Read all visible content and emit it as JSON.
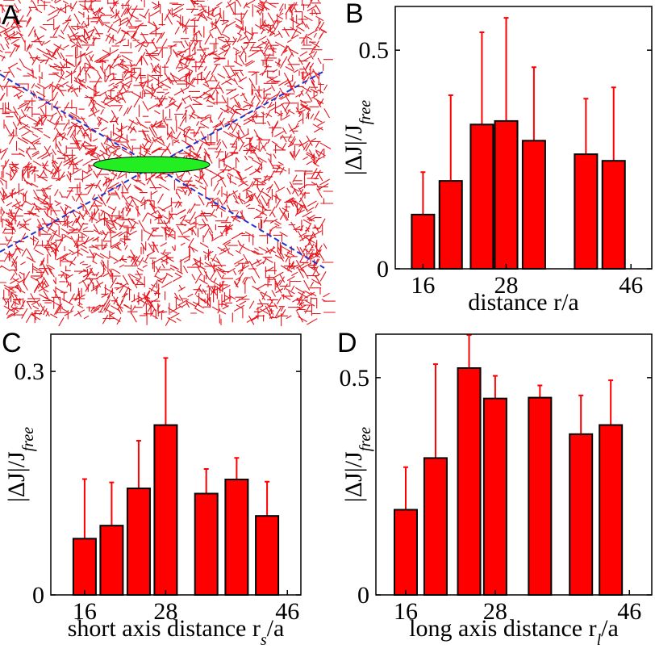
{
  "chart_data": [
    {
      "type": "network",
      "label": "A"
    },
    {
      "type": "bar",
      "label": "B",
      "x": [
        16,
        20,
        24.5,
        28,
        32,
        39.5,
        43.5
      ],
      "values": [
        0.124,
        0.201,
        0.33,
        0.338,
        0.293,
        0.262,
        0.247
      ],
      "errors": [
        0.097,
        0.196,
        0.211,
        0.236,
        0.168,
        0.127,
        0.168
      ],
      "color": "#ff0000",
      "xlim": [
        12,
        49
      ],
      "xticks": [
        16,
        28,
        46
      ],
      "ylim": [
        0,
        0.6
      ],
      "yticks": [
        0,
        0.5
      ],
      "xlabel": [
        "distance r/a"
      ],
      "ylabel": [
        "|ΔJ|/J",
        "free"
      ]
    },
    {
      "type": "bar",
      "label": "C",
      "x": [
        16,
        20,
        24,
        28,
        34,
        38.5,
        43
      ],
      "values": [
        0.0755,
        0.093,
        0.143,
        0.228,
        0.136,
        0.155,
        0.106
      ],
      "errors": [
        0.08,
        0.058,
        0.064,
        0.09,
        0.033,
        0.029,
        0.046
      ],
      "color": "#ff0000",
      "xlim": [
        11,
        48
      ],
      "xticks": [
        16,
        28,
        46
      ],
      "ylim": [
        0,
        0.35
      ],
      "yticks": [
        0,
        0.3
      ],
      "xlabel": [
        "short axis distance r",
        "s",
        "/a"
      ],
      "ylabel": [
        "|ΔJ|/J",
        "free"
      ]
    },
    {
      "type": "bar",
      "label": "D",
      "x": [
        16,
        20,
        24.5,
        28,
        34,
        39.5,
        43.5
      ],
      "values": [
        0.196,
        0.315,
        0.522,
        0.452,
        0.454,
        0.37,
        0.391
      ],
      "errors": [
        0.098,
        0.216,
        0.076,
        0.052,
        0.028,
        0.089,
        0.103
      ],
      "color": "#ff0000",
      "xlim": [
        12,
        49
      ],
      "xticks": [
        16,
        28,
        46
      ],
      "ylim": [
        0,
        0.6
      ],
      "yticks": [
        0,
        0.5
      ],
      "xlabel": [
        "long axis distance r",
        "l",
        "/a"
      ],
      "ylabel": [
        "|ΔJ|/J",
        "free"
      ]
    }
  ]
}
